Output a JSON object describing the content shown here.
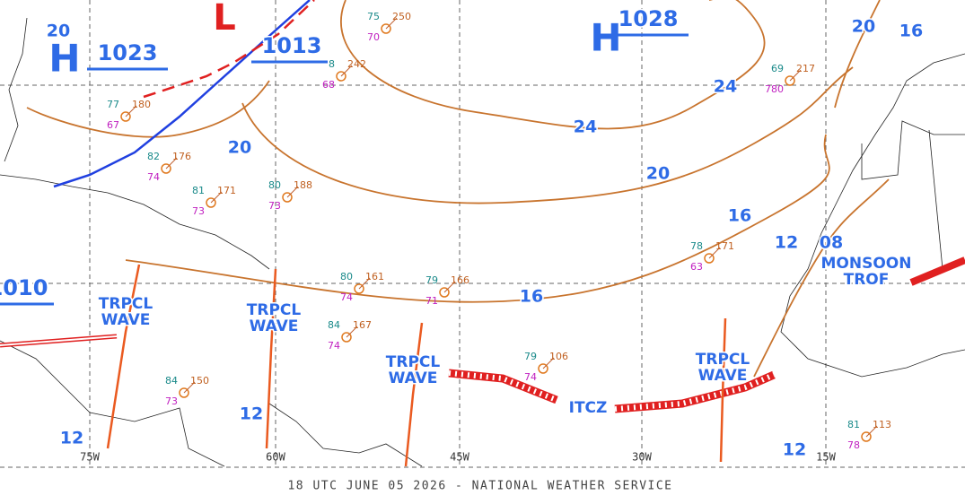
{
  "highs": [
    {
      "symbol": "H",
      "value": "1028"
    },
    {
      "symbol": "H",
      "value": "1023"
    }
  ],
  "lows": [
    {
      "symbol": "L"
    }
  ],
  "front_pressures": [
    "1013",
    "1010"
  ],
  "isobar_labels": [
    "24",
    "24",
    "20",
    "20",
    "20",
    "20",
    "16",
    "16",
    "16",
    "12",
    "12",
    "12",
    "12",
    "08"
  ],
  "features": [
    {
      "lines": [
        "TRPCL",
        "WAVE"
      ]
    },
    {
      "lines": [
        "TRPCL",
        "WAVE"
      ]
    },
    {
      "lines": [
        "TRPCL",
        "WAVE"
      ]
    },
    {
      "lines": [
        "TRPCL",
        "WAVE"
      ]
    },
    {
      "lines": [
        "ITCZ"
      ]
    },
    {
      "lines": [
        "MONSOON",
        "TROF"
      ]
    }
  ],
  "stations": [
    {
      "temp": "75",
      "pressure": "250",
      "dew": "70"
    },
    {
      "temp": "8",
      "pressure": "242",
      "dew": "68"
    },
    {
      "temp": "77",
      "pressure": "180",
      "dew": "67"
    },
    {
      "temp": "82",
      "pressure": "176",
      "dew": "74"
    },
    {
      "temp": "80",
      "pressure": "188",
      "dew": "73"
    },
    {
      "temp": "81",
      "pressure": "171",
      "dew": "73"
    },
    {
      "temp": "80",
      "pressure": "161",
      "dew": "74"
    },
    {
      "temp": "79",
      "pressure": "166",
      "dew": "71"
    },
    {
      "temp": "84",
      "pressure": "167",
      "dew": "74"
    },
    {
      "temp": "79",
      "pressure": "106",
      "dew": "74"
    },
    {
      "temp": "84",
      "pressure": "150",
      "dew": "73"
    },
    {
      "temp": "78",
      "pressure": "171",
      "dew": "63"
    },
    {
      "temp": "81",
      "pressure": "113",
      "dew": "78"
    },
    {
      "temp": "69",
      "pressure": "217",
      "dew": "780"
    }
  ],
  "longitudes": [
    "75W",
    "60W",
    "45W",
    "30W",
    "15W"
  ],
  "footer": "18 UTC JUNE 05 2026 - NATIONAL WEATHER SERVICE"
}
